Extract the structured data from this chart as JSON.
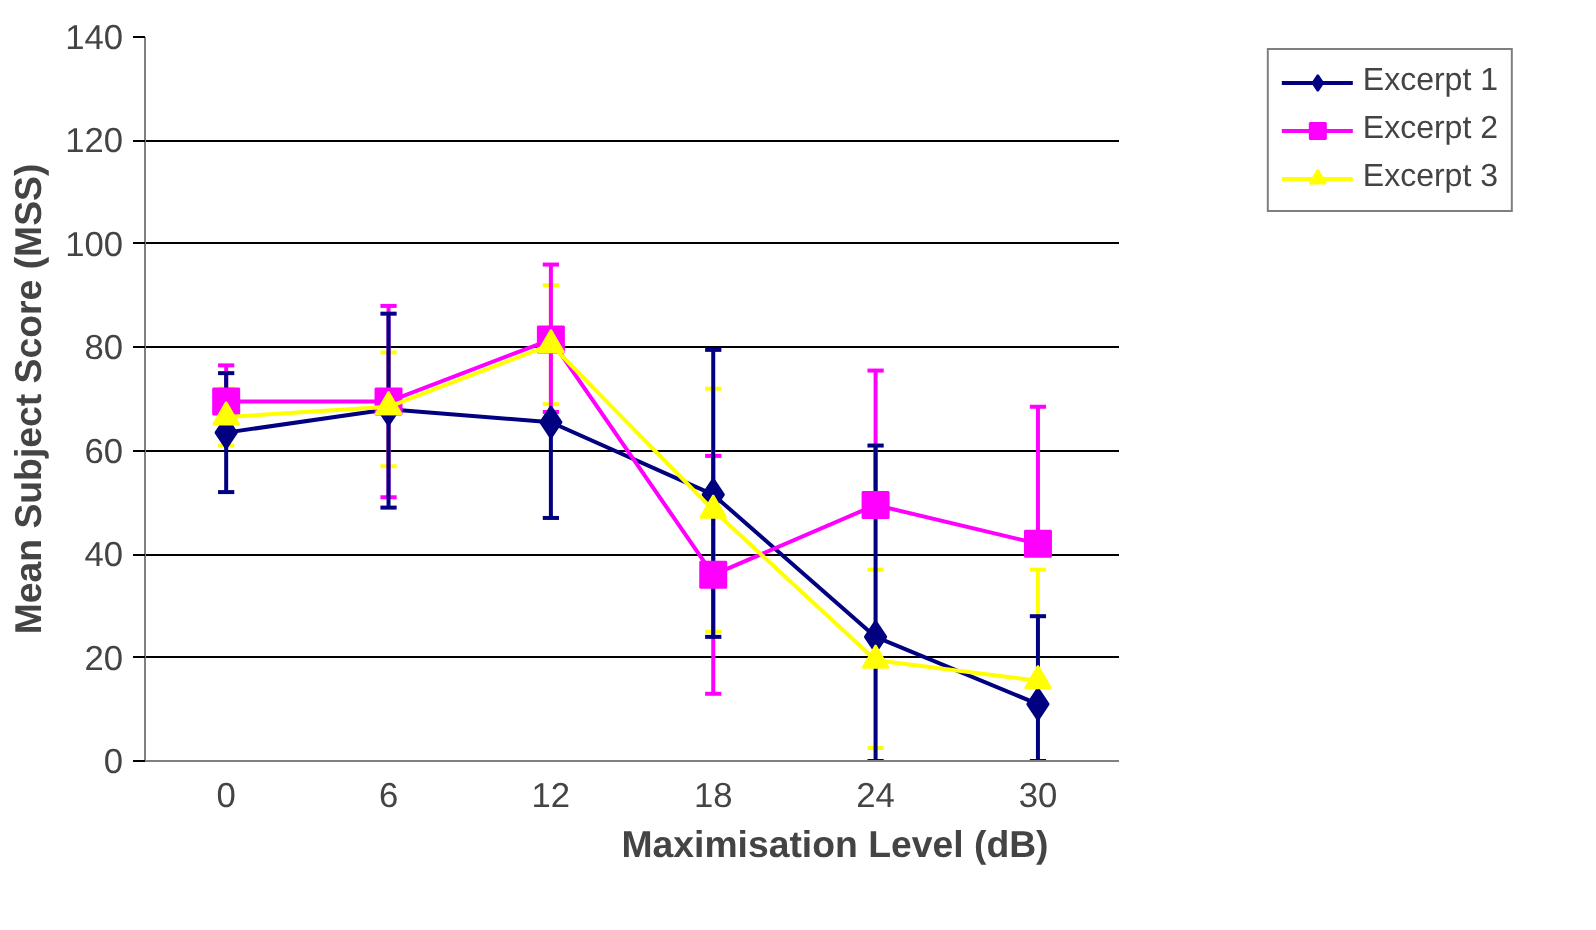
{
  "chart_data": {
    "type": "line",
    "xlabel": "Maximisation Level (dB)",
    "ylabel": "Mean Subject Score (MSS)",
    "categories": [
      "0",
      "6",
      "12",
      "18",
      "24",
      "30"
    ],
    "series": [
      {
        "name": "Excerpt 1",
        "color": "#000080",
        "marker": "diamond",
        "values": [
          63.5,
          68,
          65.5,
          51.5,
          24,
          11
        ],
        "errors": [
          [
            52,
            75
          ],
          [
            49,
            86.5
          ],
          [
            47,
            65.5
          ],
          [
            24,
            79.5
          ],
          [
            0,
            61
          ],
          [
            0,
            28
          ]
        ]
      },
      {
        "name": "Excerpt 2",
        "color": "#ff00ff",
        "marker": "square",
        "values": [
          69.5,
          69.5,
          81.5,
          36,
          49.5,
          42
        ],
        "errors": [
          [
            69.5,
            76.5
          ],
          [
            51,
            88
          ],
          [
            67.5,
            96
          ],
          [
            13,
            59
          ],
          [
            49.5,
            75.5
          ],
          [
            42,
            68.5
          ]
        ]
      },
      {
        "name": "Excerpt 3",
        "color": "#ffff00",
        "marker": "triangle",
        "values": [
          66.5,
          68.5,
          80.5,
          48.5,
          19.5,
          15.5
        ],
        "errors": [
          [
            61,
            72
          ],
          [
            57,
            79
          ],
          [
            69,
            92
          ],
          [
            25,
            72
          ],
          [
            2.5,
            37
          ],
          [
            15.5,
            37
          ]
        ]
      }
    ],
    "ylim": [
      0,
      140
    ],
    "yticks": [
      0,
      20,
      40,
      60,
      80,
      100,
      120,
      140
    ],
    "grid": "y",
    "legend": "top right"
  }
}
